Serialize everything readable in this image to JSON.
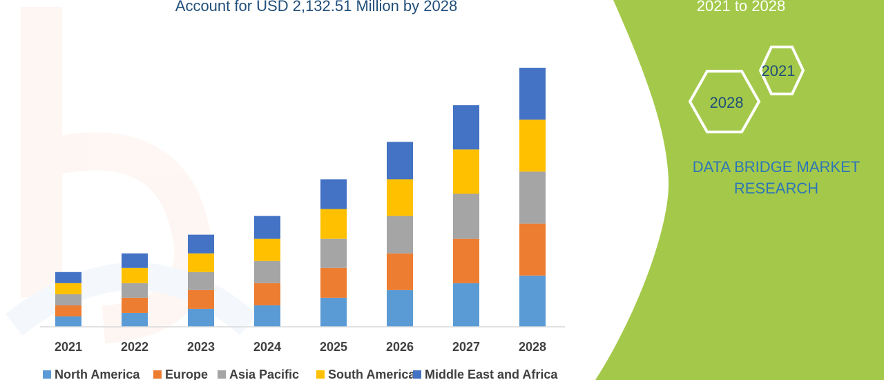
{
  "chart_data": {
    "type": "bar",
    "stacked": true,
    "title": "Account for USD 2,132.51 Million by 2028",
    "categories": [
      "2021",
      "2022",
      "2023",
      "2024",
      "2025",
      "2026",
      "2027",
      "2028"
    ],
    "series": [
      {
        "name": "North America",
        "color": "#5b9bd5",
        "values": [
          15,
          20,
          26,
          31,
          42,
          53,
          63,
          74
        ]
      },
      {
        "name": "Europe",
        "color": "#ed7d31",
        "values": [
          16,
          22,
          27,
          32,
          43,
          53,
          64,
          75
        ]
      },
      {
        "name": "Asia Pacific",
        "color": "#a5a5a5",
        "values": [
          16,
          21,
          26,
          32,
          42,
          54,
          65,
          75
        ]
      },
      {
        "name": "South America",
        "color": "#ffc000",
        "values": [
          16,
          22,
          27,
          32,
          43,
          53,
          64,
          75
        ]
      },
      {
        "name": "Middle East and Africa",
        "color": "#4472c4",
        "values": [
          16,
          21,
          27,
          33,
          43,
          54,
          64,
          75
        ]
      }
    ],
    "ylim": [
      0,
      390
    ],
    "grid": false,
    "legend": "bottom"
  },
  "sidebar": {
    "period": "2021 to 2028",
    "hex_start": "2021",
    "hex_end": "2028",
    "brand_line1": "DATA BRIDGE MARKET",
    "brand_line2": "RESEARCH",
    "color": "#a4c94a"
  }
}
